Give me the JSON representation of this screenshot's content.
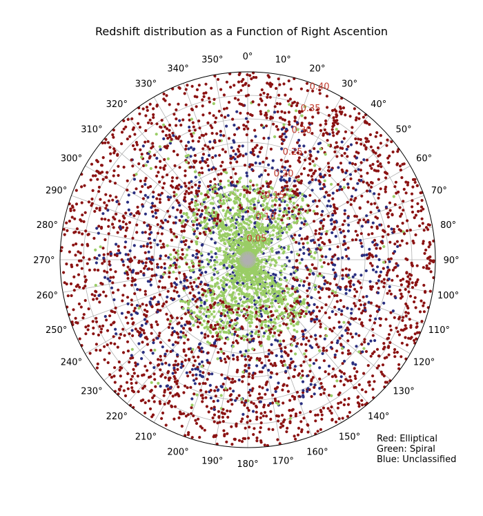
{
  "chart_data": {
    "type": "scatter",
    "projection": "polar",
    "title": "Redshift distribution as a Function of Right Ascention",
    "angular_axis": {
      "unit": "deg",
      "zero_location": "top",
      "direction": "clockwise",
      "tick_labels": [
        "0°",
        "10°",
        "20°",
        "30°",
        "40°",
        "50°",
        "60°",
        "70°",
        "80°",
        "90°",
        "100°",
        "110°",
        "120°",
        "130°",
        "140°",
        "150°",
        "160°",
        "170°",
        "180°",
        "190°",
        "200°",
        "210°",
        "220°",
        "230°",
        "240°",
        "250°",
        "260°",
        "270°",
        "280°",
        "290°",
        "300°",
        "310°",
        "320°",
        "330°",
        "340°",
        "350°"
      ]
    },
    "radial_axis": {
      "quantity": "redshift",
      "rlim": [
        0,
        0.4
      ],
      "ticks": [
        0.05,
        0.1,
        0.15,
        0.2,
        0.25,
        0.3,
        0.35,
        0.4
      ],
      "tick_labels": [
        "0.05",
        "0.10",
        "0.15",
        "0.20",
        "0.25",
        "0.30",
        "0.35",
        "0.40"
      ],
      "label_angle_deg": 22.5,
      "label_color": "#c0392b"
    },
    "grid": true,
    "series": [
      {
        "name": "Elliptical",
        "color": "#8b1313",
        "density": "dense in all directions, concentrated at redshift 0.10-0.40",
        "count": 2600
      },
      {
        "name": "Unclassified",
        "color": "#2a2f80",
        "density": "moderate, mainly redshift 0.05-0.30",
        "count": 850
      },
      {
        "name": "Spiral",
        "color": "#9acd66",
        "density": "mostly low redshift (< 0.15), concentrated in two wedges toward 0° and 180°",
        "count": 1900
      }
    ],
    "legend_note": [
      "Red: Elliptical",
      "Green: Spiral",
      "Blue: Unclassified"
    ]
  }
}
